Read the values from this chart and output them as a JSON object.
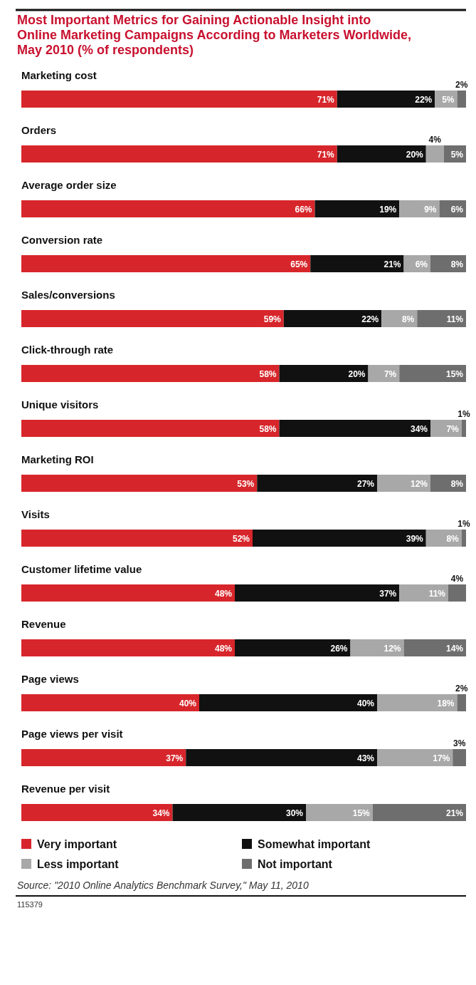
{
  "chart_data": {
    "type": "bar",
    "orientation": "horizontal",
    "stacked": true,
    "title": "Most Important Metrics for Gaining Actionable Insight into Online Marketing Campaigns According to Marketers Worldwide, May 2010 (% of respondents)",
    "categories": [
      "Marketing cost",
      "Orders",
      "Average order size",
      "Conversion rate",
      "Sales/conversions",
      "Click-through rate",
      "Unique visitors",
      "Marketing ROI",
      "Visits",
      "Customer lifetime value",
      "Revenue",
      "Page views",
      "Page views per visit",
      "Revenue per visit"
    ],
    "series": [
      {
        "name": "Very important",
        "color": "#d7262b",
        "values": [
          71,
          71,
          66,
          65,
          59,
          58,
          58,
          53,
          52,
          48,
          48,
          40,
          37,
          34
        ],
        "value_labels": [
          "71%",
          "71%",
          "66%",
          "65%",
          "59%",
          "58%",
          "58%",
          "53%",
          "52%",
          "48%",
          "48%",
          "40%",
          "37%",
          "34%"
        ]
      },
      {
        "name": "Somewhat important",
        "color": "#111111",
        "values": [
          22,
          20,
          19,
          21,
          22,
          20,
          34,
          27,
          39,
          37,
          26,
          40,
          43,
          30
        ],
        "value_labels": [
          "22%",
          "20%",
          "19%",
          "21%",
          "22%",
          "20%",
          "34%",
          "27%",
          "39%",
          "37%",
          "26%",
          "40%",
          "43%",
          "30%"
        ]
      },
      {
        "name": "Less important",
        "color": "#a8a8a8",
        "values": [
          5,
          4,
          9,
          6,
          8,
          7,
          7,
          12,
          8,
          11,
          12,
          18,
          17,
          15
        ],
        "value_labels": [
          "5%",
          "4%",
          "9%",
          "6%",
          "8%",
          "7%",
          "7%",
          "12%",
          "8%",
          "11%",
          "12%",
          "18%",
          "17%",
          "15%"
        ]
      },
      {
        "name": "Not important",
        "color": "#6e6e6e",
        "values": [
          2,
          5,
          6,
          8,
          11,
          15,
          1,
          8,
          1,
          4,
          14,
          2,
          3,
          21
        ],
        "value_labels": [
          "2%",
          "5%",
          "6%",
          "8%",
          "11%",
          "15%",
          "1%",
          "8%",
          "1%",
          "4%",
          "14%",
          "2%",
          "3%",
          "21%"
        ]
      }
    ],
    "legend": "bottom",
    "annotations": [
      "Source: \"2010 Online Analytics Benchmark Survey,\" May 11, 2010",
      "115379"
    ]
  }
}
